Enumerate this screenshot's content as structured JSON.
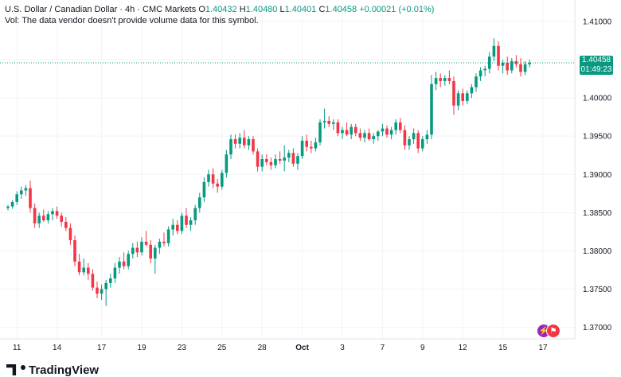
{
  "header": {
    "symbol": "U.S. Dollar / Canadian Dollar · 4h · CMC Markets",
    "open_label": "O",
    "open": "1.40432",
    "high_label": "H",
    "high": "1.40480",
    "low_label": "L",
    "low": "1.40401",
    "close_label": "C",
    "close": "1.40458",
    "change": "+0.00021 (+0.01%)",
    "volume_note": "Vol: The data vendor doesn't provide volume data for this symbol."
  },
  "price_tag": {
    "price": "1.40458",
    "countdown": "01:49:23"
  },
  "branding": {
    "name": "TradingView"
  },
  "event_icons": [
    "lightning-icon",
    "flag-icon"
  ],
  "colors": {
    "up": "#089981",
    "down": "#f23645",
    "grid": "#f0f3fa",
    "last_price_line": "#089981"
  },
  "chart_data": {
    "type": "candlestick",
    "title": "U.S. Dollar / Canadian Dollar · 4h · CMC Markets",
    "interval": "4h",
    "y_ticks": [
      "1.41000",
      "1.40500",
      "1.40000",
      "1.39500",
      "1.39000",
      "1.38500",
      "1.38000",
      "1.37500",
      "1.37000"
    ],
    "ylim": [
      1.3685,
      1.4128
    ],
    "x_ticks": [
      {
        "label": "11",
        "index": 2
      },
      {
        "label": "14",
        "index": 11
      },
      {
        "label": "17",
        "index": 21
      },
      {
        "label": "19",
        "index": 30
      },
      {
        "label": "23",
        "index": 39
      },
      {
        "label": "25",
        "index": 48
      },
      {
        "label": "28",
        "index": 57
      },
      {
        "label": "Oct",
        "index": 66,
        "strong": true
      },
      {
        "label": "3",
        "index": 75
      },
      {
        "label": "7",
        "index": 84
      },
      {
        "label": "9",
        "index": 93
      },
      {
        "label": "12",
        "index": 102
      },
      {
        "label": "15",
        "index": 111
      },
      {
        "label": "17",
        "index": 120
      }
    ],
    "last_price": 1.40458,
    "candles": [
      [
        1.3856,
        1.386,
        1.3853,
        1.3858
      ],
      [
        1.3858,
        1.3866,
        1.3855,
        1.3864
      ],
      [
        1.3864,
        1.3878,
        1.386,
        1.3874
      ],
      [
        1.3874,
        1.3884,
        1.3868,
        1.3879
      ],
      [
        1.3879,
        1.3886,
        1.3872,
        1.3882
      ],
      [
        1.3882,
        1.3892,
        1.385,
        1.3856
      ],
      [
        1.3856,
        1.3862,
        1.383,
        1.3836
      ],
      [
        1.3836,
        1.385,
        1.383,
        1.3846
      ],
      [
        1.3846,
        1.3854,
        1.3838,
        1.384
      ],
      [
        1.384,
        1.3852,
        1.3836,
        1.3848
      ],
      [
        1.3848,
        1.3856,
        1.384,
        1.3852
      ],
      [
        1.3852,
        1.3858,
        1.3842,
        1.3846
      ],
      [
        1.3846,
        1.385,
        1.3832,
        1.3838
      ],
      [
        1.3838,
        1.3844,
        1.3826,
        1.383
      ],
      [
        1.383,
        1.3836,
        1.3808,
        1.3814
      ],
      [
        1.3814,
        1.382,
        1.378,
        1.3786
      ],
      [
        1.3786,
        1.3796,
        1.3768,
        1.3772
      ],
      [
        1.3772,
        1.379,
        1.3768,
        1.3778
      ],
      [
        1.3778,
        1.3784,
        1.3762,
        1.377
      ],
      [
        1.377,
        1.3776,
        1.3748,
        1.3752
      ],
      [
        1.3752,
        1.376,
        1.3738,
        1.3744
      ],
      [
        1.3744,
        1.3756,
        1.3736,
        1.375
      ],
      [
        1.375,
        1.3762,
        1.3728,
        1.3758
      ],
      [
        1.3758,
        1.377,
        1.3752,
        1.3764
      ],
      [
        1.3764,
        1.3784,
        1.3758,
        1.3778
      ],
      [
        1.3778,
        1.3792,
        1.377,
        1.3786
      ],
      [
        1.3786,
        1.3798,
        1.3776,
        1.378
      ],
      [
        1.378,
        1.38,
        1.3776,
        1.3796
      ],
      [
        1.3796,
        1.381,
        1.379,
        1.3804
      ],
      [
        1.3804,
        1.3812,
        1.3792,
        1.3798
      ],
      [
        1.3798,
        1.3818,
        1.3794,
        1.3812
      ],
      [
        1.3812,
        1.3826,
        1.3806,
        1.3808
      ],
      [
        1.3808,
        1.3814,
        1.3784,
        1.379
      ],
      [
        1.379,
        1.3808,
        1.377,
        1.3804
      ],
      [
        1.3804,
        1.3816,
        1.3796,
        1.3812
      ],
      [
        1.3812,
        1.3824,
        1.3806,
        1.381
      ],
      [
        1.381,
        1.3832,
        1.3806,
        1.3828
      ],
      [
        1.3828,
        1.3842,
        1.382,
        1.3834
      ],
      [
        1.3834,
        1.384,
        1.3822,
        1.3826
      ],
      [
        1.3826,
        1.385,
        1.3822,
        1.3846
      ],
      [
        1.3846,
        1.3856,
        1.383,
        1.3834
      ],
      [
        1.3834,
        1.3844,
        1.3826,
        1.384
      ],
      [
        1.384,
        1.386,
        1.3834,
        1.3856
      ],
      [
        1.3856,
        1.3876,
        1.385,
        1.387
      ],
      [
        1.387,
        1.3896,
        1.3864,
        1.389
      ],
      [
        1.389,
        1.3906,
        1.3884,
        1.39
      ],
      [
        1.39,
        1.3908,
        1.3882,
        1.3888
      ],
      [
        1.3888,
        1.3894,
        1.3876,
        1.3884
      ],
      [
        1.3884,
        1.3906,
        1.388,
        1.3902
      ],
      [
        1.3902,
        1.3932,
        1.3896,
        1.3926
      ],
      [
        1.3926,
        1.3952,
        1.392,
        1.3946
      ],
      [
        1.3946,
        1.3952,
        1.3934,
        1.394
      ],
      [
        1.394,
        1.3954,
        1.3934,
        1.3948
      ],
      [
        1.3948,
        1.3958,
        1.3934,
        1.3938
      ],
      [
        1.3938,
        1.395,
        1.3932,
        1.3946
      ],
      [
        1.3946,
        1.395,
        1.3926,
        1.393
      ],
      [
        1.393,
        1.3934,
        1.3904,
        1.391
      ],
      [
        1.391,
        1.3926,
        1.3904,
        1.392
      ],
      [
        1.392,
        1.3926,
        1.3912,
        1.3916
      ],
      [
        1.3916,
        1.3922,
        1.3906,
        1.3912
      ],
      [
        1.3912,
        1.3926,
        1.3908,
        1.392
      ],
      [
        1.392,
        1.393,
        1.3914,
        1.3918
      ],
      [
        1.3918,
        1.3938,
        1.3904,
        1.3922
      ],
      [
        1.3922,
        1.3932,
        1.3916,
        1.3928
      ],
      [
        1.3928,
        1.3934,
        1.391,
        1.3914
      ],
      [
        1.3914,
        1.3928,
        1.3906,
        1.3924
      ],
      [
        1.3924,
        1.395,
        1.392,
        1.3944
      ],
      [
        1.3944,
        1.3952,
        1.393,
        1.3936
      ],
      [
        1.3936,
        1.3944,
        1.3928,
        1.3934
      ],
      [
        1.3934,
        1.3948,
        1.393,
        1.3942
      ],
      [
        1.3942,
        1.3972,
        1.3938,
        1.3968
      ],
      [
        1.3968,
        1.3986,
        1.396,
        1.397
      ],
      [
        1.397,
        1.3976,
        1.3962,
        1.3966
      ],
      [
        1.3966,
        1.3972,
        1.3958,
        1.3968
      ],
      [
        1.3968,
        1.3972,
        1.395,
        1.3954
      ],
      [
        1.3954,
        1.3962,
        1.3946,
        1.3958
      ],
      [
        1.3958,
        1.3968,
        1.395,
        1.3952
      ],
      [
        1.3952,
        1.3966,
        1.3946,
        1.3962
      ],
      [
        1.3962,
        1.3966,
        1.395,
        1.3954
      ],
      [
        1.3954,
        1.396,
        1.3944,
        1.3948
      ],
      [
        1.3948,
        1.3958,
        1.3942,
        1.3954
      ],
      [
        1.3954,
        1.396,
        1.3944,
        1.3946
      ],
      [
        1.3946,
        1.3954,
        1.394,
        1.395
      ],
      [
        1.395,
        1.3958,
        1.3944,
        1.3956
      ],
      [
        1.3956,
        1.3966,
        1.395,
        1.396
      ],
      [
        1.396,
        1.3964,
        1.3948,
        1.3952
      ],
      [
        1.3952,
        1.3962,
        1.3946,
        1.3958
      ],
      [
        1.3958,
        1.3972,
        1.3952,
        1.3968
      ],
      [
        1.3968,
        1.3974,
        1.3954,
        1.3958
      ],
      [
        1.3958,
        1.3964,
        1.3932,
        1.3938
      ],
      [
        1.3938,
        1.395,
        1.3932,
        1.3946
      ],
      [
        1.3946,
        1.396,
        1.394,
        1.3954
      ],
      [
        1.3954,
        1.3958,
        1.3928,
        1.3934
      ],
      [
        1.3934,
        1.395,
        1.393,
        1.3946
      ],
      [
        1.3946,
        1.3958,
        1.394,
        1.3952
      ],
      [
        1.3952,
        1.403,
        1.3946,
        1.4018
      ],
      [
        1.4018,
        1.4034,
        1.401,
        1.4026
      ],
      [
        1.4026,
        1.4032,
        1.4014,
        1.4022
      ],
      [
        1.4022,
        1.403,
        1.4016,
        1.4026
      ],
      [
        1.4026,
        1.4036,
        1.4018,
        1.4022
      ],
      [
        1.4022,
        1.4028,
        1.3978,
        1.399
      ],
      [
        1.399,
        1.401,
        1.3984,
        1.4006
      ],
      [
        1.4006,
        1.4012,
        1.399,
        1.3996
      ],
      [
        1.3996,
        1.401,
        1.3992,
        1.4006
      ],
      [
        1.4006,
        1.4018,
        1.4,
        1.4014
      ],
      [
        1.4014,
        1.4032,
        1.4008,
        1.4028
      ],
      [
        1.4028,
        1.404,
        1.4022,
        1.4036
      ],
      [
        1.4036,
        1.4042,
        1.4028,
        1.4038
      ],
      [
        1.4038,
        1.406,
        1.4032,
        1.4054
      ],
      [
        1.4054,
        1.4078,
        1.4048,
        1.4068
      ],
      [
        1.4068,
        1.4074,
        1.4036,
        1.4042
      ],
      [
        1.4042,
        1.405,
        1.4032,
        1.4046
      ],
      [
        1.4046,
        1.4054,
        1.403,
        1.4036
      ],
      [
        1.4036,
        1.4052,
        1.4032,
        1.4048
      ],
      [
        1.4048,
        1.4056,
        1.404,
        1.4044
      ],
      [
        1.4044,
        1.4052,
        1.4028,
        1.4034
      ],
      [
        1.4034,
        1.4048,
        1.403,
        1.4044
      ],
      [
        1.4044,
        1.405,
        1.404,
        1.4046
      ]
    ]
  }
}
